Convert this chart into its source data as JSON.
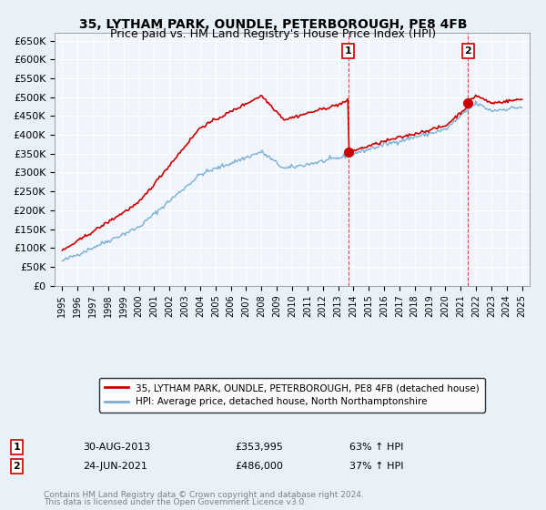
{
  "title1": "35, LYTHAM PARK, OUNDLE, PETERBOROUGH, PE8 4FB",
  "title2": "Price paid vs. HM Land Registry's House Price Index (HPI)",
  "legend_line1": "35, LYTHAM PARK, OUNDLE, PETERBOROUGH, PE8 4FB (detached house)",
  "legend_line2": "HPI: Average price, detached house, North Northamptonshire",
  "sale1_label": "1",
  "sale1_date": "30-AUG-2013",
  "sale1_price": "£353,995",
  "sale1_hpi": "63% ↑ HPI",
  "sale1_year": 2013.67,
  "sale2_label": "2",
  "sale2_date": "24-JUN-2021",
  "sale2_price": "£486,000",
  "sale2_hpi": "37% ↑ HPI",
  "sale2_year": 2021.48,
  "footnote1": "Contains HM Land Registry data © Crown copyright and database right 2024.",
  "footnote2": "This data is licensed under the Open Government Licence v3.0.",
  "background_color": "#e8f0f8",
  "plot_bg": "#f0f4fb",
  "red_color": "#cc0000",
  "blue_color": "#7ab0d4",
  "ylim_min": 0,
  "ylim_max": 670000,
  "xlim_min": 1994.5,
  "xlim_max": 2025.5
}
